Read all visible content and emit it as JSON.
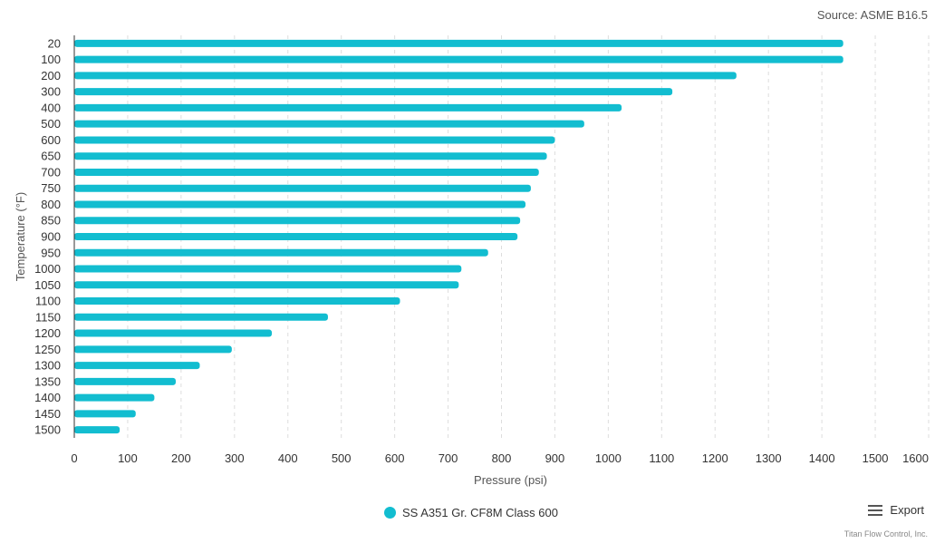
{
  "source_text": "Source: ASME B16.5",
  "export_label": "Export",
  "credit_text": "Titan Flow Control, Inc.",
  "icons": {
    "export": "hamburger-menu-icon"
  },
  "colors": {
    "series": "#12bdd0",
    "grid": "#dddddd",
    "axis": "#333333"
  },
  "chart_data": {
    "type": "bar",
    "orientation": "horizontal",
    "categories": [
      "20",
      "100",
      "200",
      "300",
      "400",
      "500",
      "600",
      "650",
      "700",
      "750",
      "800",
      "850",
      "900",
      "950",
      "1000",
      "1050",
      "1100",
      "1150",
      "1200",
      "1250",
      "1300",
      "1350",
      "1400",
      "1450",
      "1500"
    ],
    "series": [
      {
        "name": "SS A351 Gr. CF8M Class 600",
        "values": [
          1440,
          1440,
          1240,
          1120,
          1025,
          955,
          900,
          885,
          870,
          855,
          845,
          835,
          830,
          775,
          725,
          720,
          610,
          475,
          370,
          295,
          235,
          190,
          150,
          115,
          85
        ]
      }
    ],
    "xlabel": "Pressure (psi)",
    "ylabel": "Temperature (°F)",
    "xlim": [
      0,
      1600
    ],
    "xticks": [
      "0",
      "100",
      "200",
      "300",
      "400",
      "500",
      "600",
      "700",
      "800",
      "900",
      "1000",
      "1100",
      "1200",
      "1300",
      "1400",
      "1500",
      "1600"
    ],
    "grid": "vertical dashed",
    "legend_position": "bottom-center"
  }
}
